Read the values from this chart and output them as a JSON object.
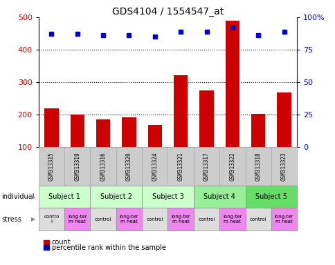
{
  "title": "GDS4104 / 1554547_at",
  "samples": [
    "GSM313315",
    "GSM313319",
    "GSM313316",
    "GSM313320",
    "GSM313324",
    "GSM313321",
    "GSM313317",
    "GSM313322",
    "GSM313318",
    "GSM313323"
  ],
  "counts": [
    220,
    200,
    185,
    192,
    168,
    322,
    275,
    490,
    203,
    268
  ],
  "percentile_ranks": [
    87,
    87,
    86,
    86,
    85,
    89,
    89,
    92,
    86,
    89
  ],
  "bar_color": "#cc0000",
  "dot_color": "#0000cc",
  "subjects": [
    {
      "label": "Subject 1",
      "start": 0,
      "end": 2,
      "color": "#ccffcc"
    },
    {
      "label": "Subject 2",
      "start": 2,
      "end": 4,
      "color": "#ccffcc"
    },
    {
      "label": "Subject 3",
      "start": 4,
      "end": 6,
      "color": "#ccffcc"
    },
    {
      "label": "Subject 4",
      "start": 6,
      "end": 8,
      "color": "#99ee99"
    },
    {
      "label": "Subject 5",
      "start": 8,
      "end": 10,
      "color": "#66dd66"
    }
  ],
  "stress": [
    {
      "label": "contro\nl",
      "start": 0,
      "end": 1,
      "color": "#dddddd"
    },
    {
      "label": "long-ter\nm heat",
      "start": 1,
      "end": 2,
      "color": "#ee88ee"
    },
    {
      "label": "control",
      "start": 2,
      "end": 3,
      "color": "#dddddd"
    },
    {
      "label": "long-ter\nm heat",
      "start": 3,
      "end": 4,
      "color": "#ee88ee"
    },
    {
      "label": "control",
      "start": 4,
      "end": 5,
      "color": "#dddddd"
    },
    {
      "label": "long-ter\nm heat",
      "start": 5,
      "end": 6,
      "color": "#ee88ee"
    },
    {
      "label": "control",
      "start": 6,
      "end": 7,
      "color": "#dddddd"
    },
    {
      "label": "long-ter\nm heat",
      "start": 7,
      "end": 8,
      "color": "#ee88ee"
    },
    {
      "label": "control",
      "start": 8,
      "end": 9,
      "color": "#dddddd"
    },
    {
      "label": "long-ter\nm heat",
      "start": 9,
      "end": 10,
      "color": "#ee88ee"
    }
  ],
  "ylim_left": [
    100,
    500
  ],
  "yticks_left": [
    100,
    200,
    300,
    400,
    500
  ],
  "ylim_right": [
    0,
    100
  ],
  "yticks_right": [
    0,
    25,
    50,
    75,
    100
  ],
  "bar_bottom": 100,
  "label_individual": "individual",
  "label_stress": "stress",
  "legend_count": "count",
  "legend_percentile": "percentile rank within the sample",
  "background_color": "#ffffff",
  "gsm_row_color": "#cccccc"
}
